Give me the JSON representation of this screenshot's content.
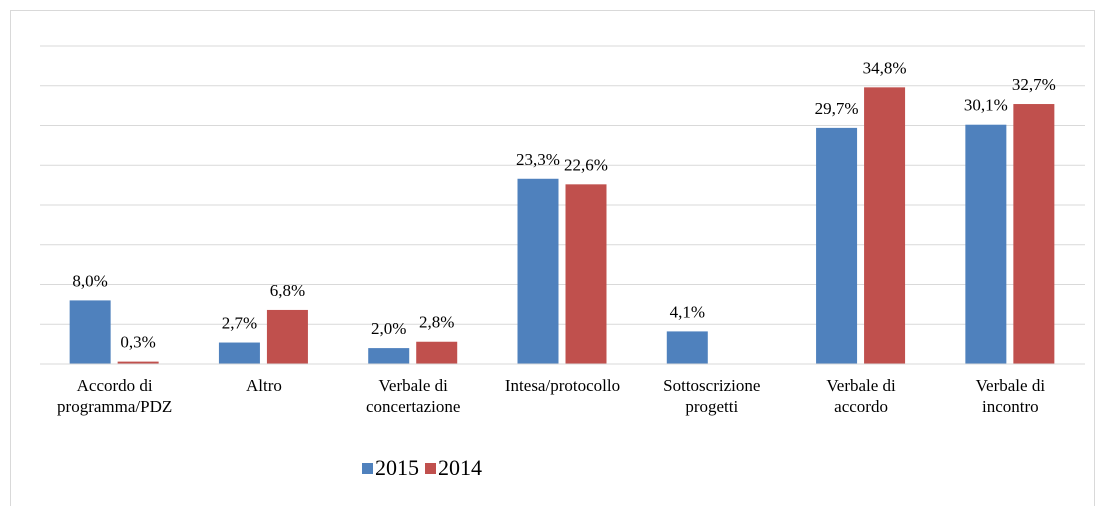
{
  "chart_data": {
    "type": "bar",
    "categories": [
      [
        "Accordo di",
        "programma/PDZ"
      ],
      [
        "Altro"
      ],
      [
        "Verbale di",
        "concertazione"
      ],
      [
        "Intesa/protocollo"
      ],
      [
        "Sottoscrizione",
        "progetti"
      ],
      [
        "Verbale di",
        "accordo"
      ],
      [
        "Verbale di",
        "incontro"
      ]
    ],
    "series": [
      {
        "name": "2015",
        "color": "#4f81bd",
        "values": [
          8.0,
          2.7,
          2.0,
          23.3,
          4.1,
          29.7,
          30.1
        ],
        "value_labels": [
          "8,0%",
          "2,7%",
          "2,0%",
          "23,3%",
          "4,1%",
          "29,7%",
          "30,1%"
        ]
      },
      {
        "name": "2014",
        "color": "#c0504d",
        "values": [
          0.3,
          6.8,
          2.8,
          22.6,
          null,
          34.8,
          32.7
        ],
        "value_labels": [
          "0,3%",
          "6,8%",
          "2,8%",
          "22,6%",
          null,
          "34,8%",
          "32,7%"
        ]
      }
    ],
    "ylim": [
      0,
      40
    ],
    "yticks": [
      0,
      5,
      10,
      15,
      20,
      25,
      30,
      35,
      40
    ],
    "grid": true,
    "legend": "bottom"
  }
}
